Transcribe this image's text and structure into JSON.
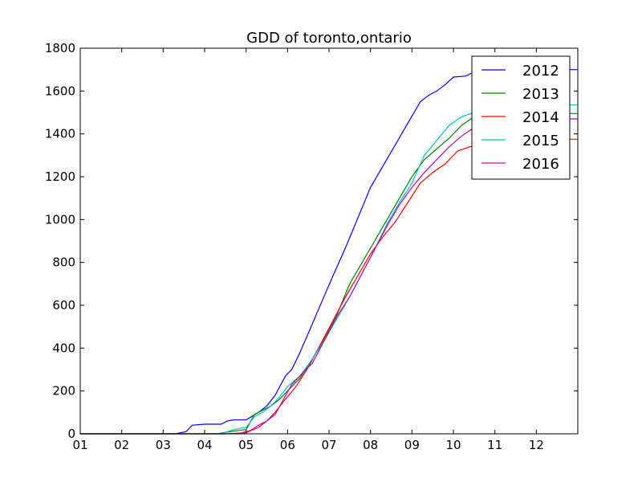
{
  "chart_data": {
    "type": "line",
    "title": "GDD of toronto,ontario",
    "xlabel": "",
    "ylabel": "",
    "x_tick_labels": [
      "01",
      "02",
      "03",
      "04",
      "05",
      "06",
      "07",
      "08",
      "09",
      "10",
      "11",
      "12"
    ],
    "xlim": [
      1,
      13
    ],
    "ylim": [
      0,
      1800
    ],
    "y_ticks": [
      0,
      200,
      400,
      600,
      800,
      1000,
      1200,
      1400,
      1600,
      1800
    ],
    "legend_position": "top-right",
    "grid": false,
    "series": [
      {
        "name": "2012",
        "color": "#0000ff",
        "x": [
          1,
          3.3,
          3.55,
          3.7,
          4,
          4.4,
          4.55,
          4.7,
          5,
          5.3,
          5.5,
          5.7,
          5.95,
          6.1,
          6.3,
          6.5,
          6.7,
          6.9,
          7.1,
          7.4,
          7.7,
          8,
          8.3,
          8.6,
          8.9,
          9.2,
          9.4,
          9.6,
          9.8,
          10,
          10.3,
          10.6,
          13
        ],
        "y": [
          0,
          0,
          10,
          40,
          45,
          45,
          60,
          65,
          65,
          100,
          130,
          180,
          270,
          300,
          380,
          470,
          560,
          650,
          740,
          870,
          1010,
          1150,
          1250,
          1350,
          1450,
          1550,
          1580,
          1600,
          1630,
          1665,
          1670,
          1700,
          1700
        ]
      },
      {
        "name": "2013",
        "color": "#008000",
        "x": [
          1,
          4.3,
          4.6,
          5,
          5.2,
          5.4,
          5.6,
          5.8,
          6,
          6.3,
          6.6,
          6.9,
          7.2,
          7.5,
          7.8,
          8.1,
          8.4,
          8.7,
          9,
          9.3,
          9.6,
          9.9,
          10.2,
          10.5,
          10.8,
          11.2,
          13
        ],
        "y": [
          0,
          0,
          10,
          20,
          90,
          110,
          130,
          160,
          200,
          260,
          350,
          450,
          560,
          700,
          800,
          900,
          1000,
          1100,
          1200,
          1280,
          1330,
          1380,
          1440,
          1480,
          1490,
          1495,
          1495
        ]
      },
      {
        "name": "2014",
        "color": "#ff0000",
        "x": [
          1,
          4.5,
          5,
          5.3,
          5.5,
          5.7,
          5.9,
          6.2,
          6.5,
          6.8,
          7.1,
          7.4,
          7.7,
          8,
          8.3,
          8.6,
          8.9,
          9.2,
          9.5,
          9.8,
          10.1,
          10.4,
          10.8,
          11.2,
          13
        ],
        "y": [
          0,
          0,
          5,
          30,
          60,
          100,
          150,
          220,
          310,
          420,
          530,
          640,
          740,
          840,
          920,
          990,
          1080,
          1170,
          1220,
          1260,
          1320,
          1340,
          1360,
          1375,
          1375
        ]
      },
      {
        "name": "2015",
        "color": "#00bfbf",
        "x": [
          1,
          4.4,
          4.7,
          5,
          5.2,
          5.4,
          5.6,
          5.8,
          6,
          6.3,
          6.6,
          6.9,
          7.2,
          7.5,
          7.8,
          8.1,
          8.4,
          8.7,
          9,
          9.3,
          9.6,
          9.9,
          10.2,
          10.5,
          10.8,
          11.2,
          13
        ],
        "y": [
          0,
          0,
          20,
          30,
          80,
          100,
          130,
          170,
          220,
          270,
          350,
          440,
          540,
          640,
          750,
          860,
          980,
          1080,
          1170,
          1300,
          1370,
          1440,
          1480,
          1500,
          1520,
          1535,
          1535
        ]
      },
      {
        "name": "2016",
        "color": "#bf00bf",
        "x": [
          1,
          4.8,
          5.1,
          5.3,
          5.5,
          5.7,
          5.9,
          6.1,
          6.3,
          6.6,
          6.9,
          7.2,
          7.5,
          7.8,
          8.1,
          8.4,
          8.7,
          9,
          9.3,
          9.6,
          9.9,
          10.2,
          10.5,
          10.9,
          11.3,
          13
        ],
        "y": [
          0,
          0,
          15,
          40,
          60,
          90,
          160,
          230,
          270,
          330,
          440,
          550,
          640,
          750,
          860,
          970,
          1070,
          1150,
          1220,
          1280,
          1340,
          1390,
          1430,
          1460,
          1470,
          1470
        ]
      }
    ]
  }
}
